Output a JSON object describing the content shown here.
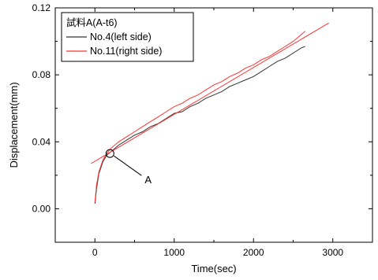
{
  "chart_data": {
    "type": "line",
    "title": "",
    "xlabel": "Time(sec)",
    "ylabel": "Displacement(mm)",
    "xlim": [
      -500,
      3500
    ],
    "ylim": [
      -0.02,
      0.12
    ],
    "x_ticks": [
      0,
      1000,
      2000,
      3000
    ],
    "x_tick_labels": [
      "0",
      "1000",
      "2000",
      "3000"
    ],
    "y_ticks": [
      0.0,
      0.04,
      0.08,
      0.12
    ],
    "y_tick_labels": [
      "0.00",
      "0.04",
      "0.08",
      "0.12"
    ],
    "grid": false,
    "legend": {
      "title": "試料A(A-t6)",
      "placement": "top-left"
    },
    "series": [
      {
        "name": "No.4(left side)",
        "color": "#333333",
        "x": [
          0,
          20,
          50,
          100,
          150,
          200,
          300,
          400,
          500,
          600,
          700,
          800,
          900,
          1000,
          1100,
          1200,
          1300,
          1400,
          1500,
          1600,
          1700,
          1800,
          1900,
          2000,
          2100,
          2200,
          2300,
          2400,
          2500,
          2600,
          2650
        ],
        "values": [
          0.003,
          0.012,
          0.021,
          0.028,
          0.032,
          0.034,
          0.038,
          0.041,
          0.044,
          0.046,
          0.049,
          0.051,
          0.054,
          0.057,
          0.058,
          0.061,
          0.063,
          0.066,
          0.068,
          0.07,
          0.073,
          0.075,
          0.077,
          0.079,
          0.082,
          0.085,
          0.088,
          0.09,
          0.093,
          0.096,
          0.097
        ]
      },
      {
        "name": "No.11(right side)",
        "color": "#ff3333",
        "x": [
          0,
          20,
          50,
          100,
          150,
          200,
          300,
          400,
          500,
          600,
          700,
          800,
          900,
          1000,
          1100,
          1200,
          1300,
          1400,
          1500,
          1600,
          1700,
          1800,
          1900,
          2000,
          2100,
          2200,
          2300,
          2400,
          2500,
          2600,
          2650
        ],
        "values": [
          0.004,
          0.014,
          0.022,
          0.029,
          0.033,
          0.036,
          0.04,
          0.043,
          0.046,
          0.049,
          0.052,
          0.055,
          0.058,
          0.061,
          0.063,
          0.066,
          0.068,
          0.071,
          0.074,
          0.076,
          0.079,
          0.081,
          0.084,
          0.086,
          0.089,
          0.091,
          0.094,
          0.097,
          0.1,
          0.104,
          0.106
        ]
      },
      {
        "name": "",
        "color": "#ff3333",
        "x": [
          -50,
          2950
        ],
        "values": [
          0.027,
          0.111
        ]
      }
    ],
    "annotations": [
      {
        "text": "A",
        "x": 190,
        "y": 0.033
      }
    ]
  }
}
